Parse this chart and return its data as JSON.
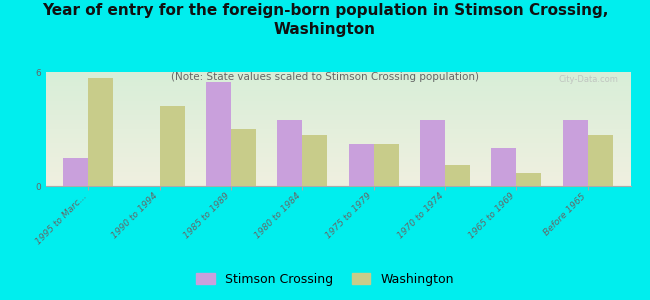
{
  "title": "Year of entry for the foreign-born population in Stimson Crossing,\nWashington",
  "subtitle": "(Note: State values scaled to Stimson Crossing population)",
  "categories": [
    "1995 to Marc...",
    "1990 to 1994",
    "1985 to 1989",
    "1980 to 1984",
    "1975 to 1979",
    "1970 to 1974",
    "1965 to 1969",
    "Before 1965"
  ],
  "stimson_values": [
    1.5,
    0.0,
    5.5,
    3.5,
    2.2,
    3.5,
    2.0,
    3.5
  ],
  "washington_values": [
    5.7,
    4.2,
    3.0,
    2.7,
    2.2,
    1.1,
    0.7,
    2.7
  ],
  "stimson_color": "#c9a0dc",
  "washington_color": "#c8cc8a",
  "background_color": "#00eeee",
  "ylim": [
    0,
    6
  ],
  "yticks": [
    0,
    6
  ],
  "bar_width": 0.35,
  "title_fontsize": 11,
  "subtitle_fontsize": 7.5,
  "legend_fontsize": 9,
  "tick_fontsize": 6.5,
  "watermark": "City-Data.com"
}
